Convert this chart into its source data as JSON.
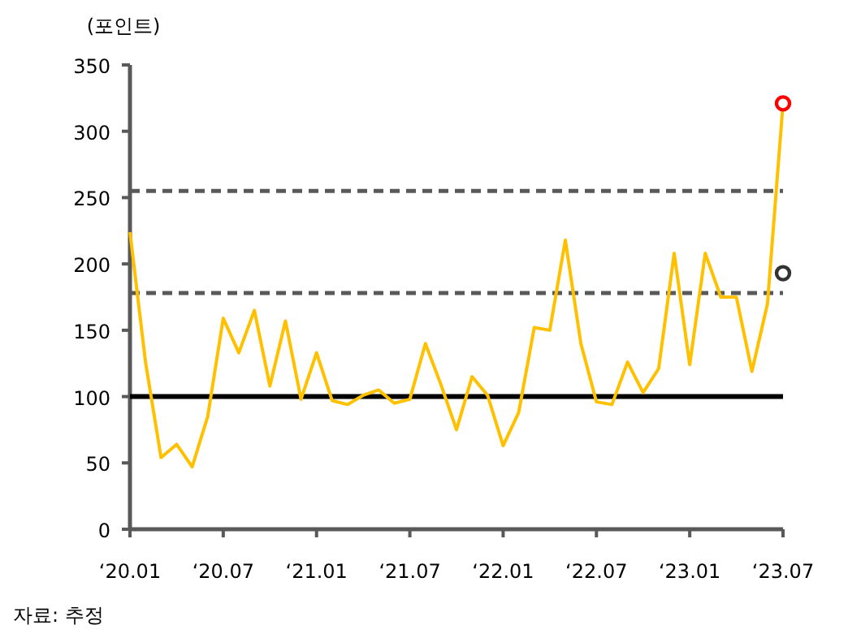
{
  "chart_data": {
    "type": "line",
    "ylabel": "(포인트)",
    "annotations": [
      "자료: 추정"
    ],
    "x": [
      "2020-01",
      "2020-02",
      "2020-03",
      "2020-04",
      "2020-05",
      "2020-06",
      "2020-07",
      "2020-08",
      "2020-09",
      "2020-10",
      "2020-11",
      "2020-12",
      "2021-01",
      "2021-02",
      "2021-03",
      "2021-04",
      "2021-05",
      "2021-06",
      "2021-07",
      "2021-08",
      "2021-09",
      "2021-10",
      "2021-11",
      "2021-12",
      "2022-01",
      "2022-02",
      "2022-03",
      "2022-04",
      "2022-05",
      "2022-06",
      "2022-07",
      "2022-08",
      "2022-09",
      "2022-10",
      "2022-11",
      "2022-12",
      "2023-01",
      "2023-02",
      "2023-03",
      "2023-04",
      "2023-05",
      "2023-06",
      "2023-07"
    ],
    "series": [
      {
        "color": "#ffc000",
        "values": [
          224,
          126,
          54,
          64,
          47,
          85,
          159,
          133,
          165,
          108,
          157,
          98,
          133,
          97,
          94,
          101,
          105,
          95,
          98,
          140,
          109,
          75,
          115,
          101,
          63,
          88,
          152,
          150,
          218,
          140,
          96,
          94,
          126,
          103,
          121,
          208,
          124,
          208,
          175,
          175,
          119,
          170,
          321
        ]
      },
      {
        "type": "scatter",
        "marker": "circle",
        "color": "#ff0000",
        "x": [
          "2023-07"
        ],
        "values": [
          321
        ]
      },
      {
        "type": "scatter",
        "marker": "circle",
        "color": "#333333",
        "x": [
          "2023-07"
        ],
        "values": [
          193
        ]
      }
    ],
    "xlim": [
      "2020-01",
      "2023-07"
    ],
    "xticks": [
      {
        "value": "2020-01",
        "label": "‘20.01"
      },
      {
        "value": "2020-07",
        "label": "‘20.07"
      },
      {
        "value": "2021-01",
        "label": "‘21.01"
      },
      {
        "value": "2021-07",
        "label": "‘21.07"
      },
      {
        "value": "2022-01",
        "label": "‘22.01"
      },
      {
        "value": "2022-07",
        "label": "‘22.07"
      },
      {
        "value": "2023-01",
        "label": "‘23.01"
      },
      {
        "value": "2023-07",
        "label": "‘23.07"
      }
    ],
    "ylim": [
      0,
      350
    ],
    "yticks": [
      0,
      50,
      100,
      150,
      200,
      250,
      300,
      350
    ],
    "grid": false,
    "ref_lines": [
      {
        "axis": "y",
        "value": 100,
        "color": "#000000",
        "line_style": "solid"
      },
      {
        "axis": "y",
        "value": 255,
        "color": "#595959",
        "line_style": "dashed"
      },
      {
        "axis": "y",
        "value": 178,
        "color": "#595959",
        "line_style": "dashed"
      }
    ]
  }
}
